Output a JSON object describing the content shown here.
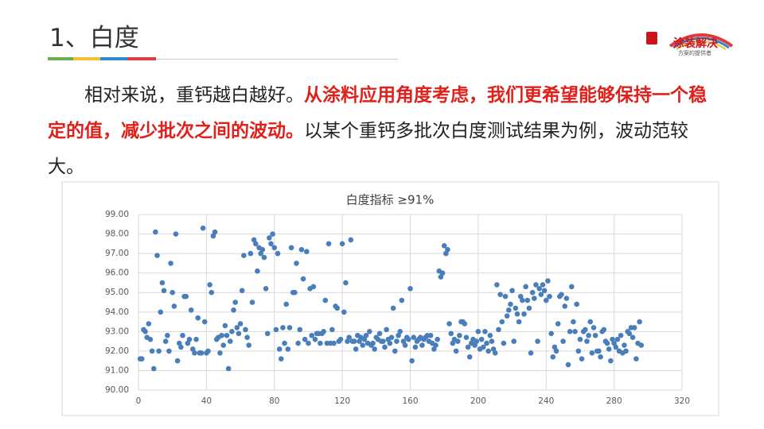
{
  "header": {
    "title": "1、白度"
  },
  "logo": {
    "name": "涂装解决",
    "slogan": "方案的提供者"
  },
  "body": {
    "intro": "相对来说，重钙越白越好。",
    "highlight": "从涂料应用角度考虑，我们更希望能够保持一个稳定的值，减少批次之间的波动。",
    "outro": "以某个重钙多批次白度测试结果为例，波动范较大。"
  },
  "chart_data": {
    "type": "scatter",
    "title": "白度指标 ≥91%",
    "color": "#4a7ebb",
    "grid": true,
    "xlim": [
      0,
      320
    ],
    "xticks": [
      0,
      40,
      80,
      120,
      160,
      200,
      240,
      280,
      320
    ],
    "ylim": [
      90,
      99
    ],
    "yticks": [
      {
        "value": 90,
        "label": "90.00"
      },
      {
        "value": 91,
        "label": "91.00"
      },
      {
        "value": 92,
        "label": "92.00"
      },
      {
        "value": 93,
        "label": "93.00"
      },
      {
        "value": 94,
        "label": "94.00"
      },
      {
        "value": 95,
        "label": "95.00"
      },
      {
        "value": 96,
        "label": "96.00"
      },
      {
        "value": 97,
        "label": "97.00"
      },
      {
        "value": 98,
        "label": "98.00"
      },
      {
        "value": 99,
        "label": "99.00"
      }
    ],
    "x": [
      1,
      2,
      3,
      4,
      5,
      6,
      7,
      8,
      9,
      10,
      11,
      12,
      13,
      14,
      15,
      16,
      17,
      18,
      19,
      20,
      21,
      22,
      23,
      24,
      25,
      26,
      27,
      28,
      29,
      30,
      31,
      32,
      33,
      34,
      35,
      36,
      37,
      38,
      39,
      40,
      41,
      42,
      43,
      44,
      45,
      46,
      47,
      48,
      49,
      50,
      51,
      52,
      53,
      54,
      55,
      56,
      57,
      58,
      59,
      60,
      61,
      62,
      63,
      64,
      65,
      66,
      67,
      68,
      69,
      70,
      71,
      72,
      73,
      74,
      75,
      76,
      77,
      78,
      79,
      80,
      81,
      82,
      83,
      84,
      85,
      86,
      87,
      88,
      89,
      90,
      91,
      92,
      93,
      94,
      95,
      96,
      97,
      98,
      99,
      100,
      101,
      102,
      103,
      104,
      105,
      106,
      107,
      108,
      109,
      110,
      111,
      112,
      113,
      114,
      115,
      116,
      117,
      118,
      119,
      120,
      121,
      122,
      123,
      124,
      125,
      126,
      127,
      128,
      129,
      130,
      131,
      132,
      133,
      134,
      135,
      136,
      137,
      138,
      139,
      140,
      141,
      142,
      143,
      144,
      145,
      146,
      147,
      148,
      149,
      150,
      151,
      152,
      153,
      154,
      155,
      156,
      157,
      158,
      159,
      160,
      161,
      162,
      163,
      164,
      165,
      166,
      167,
      168,
      169,
      170,
      171,
      172,
      173,
      174,
      175,
      176,
      177,
      178,
      179,
      180,
      181,
      182,
      183,
      184,
      185,
      186,
      187,
      188,
      189,
      190,
      191,
      192,
      193,
      194,
      195,
      196,
      197,
      198,
      199,
      200,
      201,
      202,
      203,
      204,
      205,
      206,
      207,
      208,
      209,
      210,
      211,
      212,
      213,
      214,
      215,
      216,
      217,
      218,
      219,
      220,
      221,
      222,
      223,
      224,
      225,
      226,
      227,
      228,
      229,
      230,
      231,
      232,
      233,
      234,
      235,
      236,
      237,
      238,
      239,
      240,
      241,
      242,
      243,
      244,
      245,
      246,
      247,
      248,
      249,
      250,
      251,
      252,
      253,
      254,
      255,
      256,
      257,
      258,
      259,
      260,
      261,
      262,
      263,
      264,
      265,
      266,
      267,
      268,
      269,
      270,
      271,
      272,
      273,
      274,
      275,
      276,
      277,
      278,
      279,
      280,
      281,
      282,
      283,
      284,
      285,
      286,
      287,
      288,
      289,
      290,
      291,
      292,
      293,
      294,
      295,
      296
    ],
    "values": [
      91.6,
      91.6,
      93.1,
      93.0,
      92.7,
      93.4,
      92.6,
      92.0,
      91.1,
      98.1,
      96.9,
      92.0,
      94.0,
      95.5,
      95.1,
      92.5,
      92.8,
      92.0,
      96.5,
      95.0,
      94.3,
      98.0,
      91.5,
      92.4,
      92.2,
      92.8,
      94.8,
      94.8,
      92.4,
      92.6,
      94.1,
      92.1,
      91.9,
      92.6,
      93.7,
      91.9,
      91.9,
      98.3,
      93.5,
      91.9,
      92.0,
      95.4,
      95.0,
      97.9,
      98.1,
      92.6,
      92.7,
      91.9,
      92.8,
      92.3,
      93.3,
      92.8,
      91.1,
      92.5,
      93.0,
      94.1,
      94.5,
      93.2,
      92.9,
      93.4,
      95.1,
      96.9,
      93.1,
      92.7,
      92.3,
      97.0,
      94.5,
      97.7,
      97.5,
      96.1,
      97.3,
      97.0,
      97.2,
      96.8,
      95.2,
      92.9,
      97.8,
      97.5,
      98.0,
      97.3,
      93.1,
      97.0,
      92.1,
      91.6,
      93.2,
      92.4,
      94.4,
      92.1,
      93.2,
      97.3,
      95.0,
      95.0,
      96.5,
      92.4,
      93.1,
      97.2,
      95.7,
      92.6,
      97.1,
      92.4,
      95.2,
      92.8,
      95.3,
      92.6,
      92.9,
      92.9,
      92.4,
      92.9,
      93.0,
      94.6,
      92.4,
      97.5,
      92.4,
      93.1,
      92.4,
      94.3,
      94.2,
      92.5,
      92.6,
      97.5,
      94.0,
      95.5,
      92.5,
      92.7,
      97.7,
      92.5,
      92.5,
      92.1,
      92.8,
      92.5,
      92.7,
      92.3,
      92.6,
      92.8,
      92.4,
      93.0,
      92.3,
      92.4,
      92.1,
      92.7,
      92.6,
      92.9,
      92.5,
      92.5,
      92.2,
      93.1,
      92.6,
      92.4,
      92.7,
      94.2,
      92.0,
      92.5,
      92.8,
      93.0,
      94.6,
      92.5,
      92.3,
      92.7,
      92.6,
      95.2,
      91.5,
      92.7,
      92.2,
      92.5,
      92.6,
      92.7,
      92.3,
      92.6,
      92.7,
      92.8,
      92.5,
      92.8,
      92.4,
      92.1,
      92.3,
      92.6,
      96.1,
      95.8,
      96.0,
      97.4,
      97.0,
      97.2,
      93.4,
      92.9,
      92.4,
      92.6,
      92.0,
      92.5,
      92.8,
      93.5,
      93.5,
      93.4,
      92.7,
      92.2,
      91.7,
      92.4,
      92.6,
      92.3,
      92.5,
      93.0,
      92.1,
      92.6,
      92.2,
      93.0,
      92.4,
      92.0,
      92.8,
      92.5,
      92.1,
      91.9,
      95.4,
      93.1,
      94.9,
      93.5,
      92.4,
      94.8,
      93.8,
      94.1,
      94.4,
      95.1,
      92.5,
      94.2,
      93.9,
      93.5,
      94.8,
      94.6,
      93.9,
      95.3,
      94.6,
      94.2,
      91.9,
      95.0,
      94.7,
      95.4,
      92.5,
      95.2,
      94.9,
      95.4,
      95.1,
      94.6,
      95.6,
      94.8,
      92.9,
      91.7,
      92.2,
      92.0,
      93.4,
      94.8,
      94.9,
      92.5,
      94.3,
      94.7,
      91.3,
      93.0,
      95.3,
      93.5,
      93.0,
      94.4,
      92.0,
      92.6,
      91.6,
      93.0,
      93.1,
      92.5,
      92.8,
      93.5,
      91.9,
      93.2,
      92.8,
      92.0,
      92.0,
      91.7,
      93.0,
      93.1,
      92.5,
      92.4,
      92.1,
      91.5,
      92.6,
      92.4,
      92.2,
      92.6,
      92.0,
      92.8,
      91.9,
      92.3,
      92.0,
      93.0,
      92.9,
      93.2,
      92.7,
      93.2,
      91.6,
      92.4,
      93.5,
      92.3
    ]
  }
}
